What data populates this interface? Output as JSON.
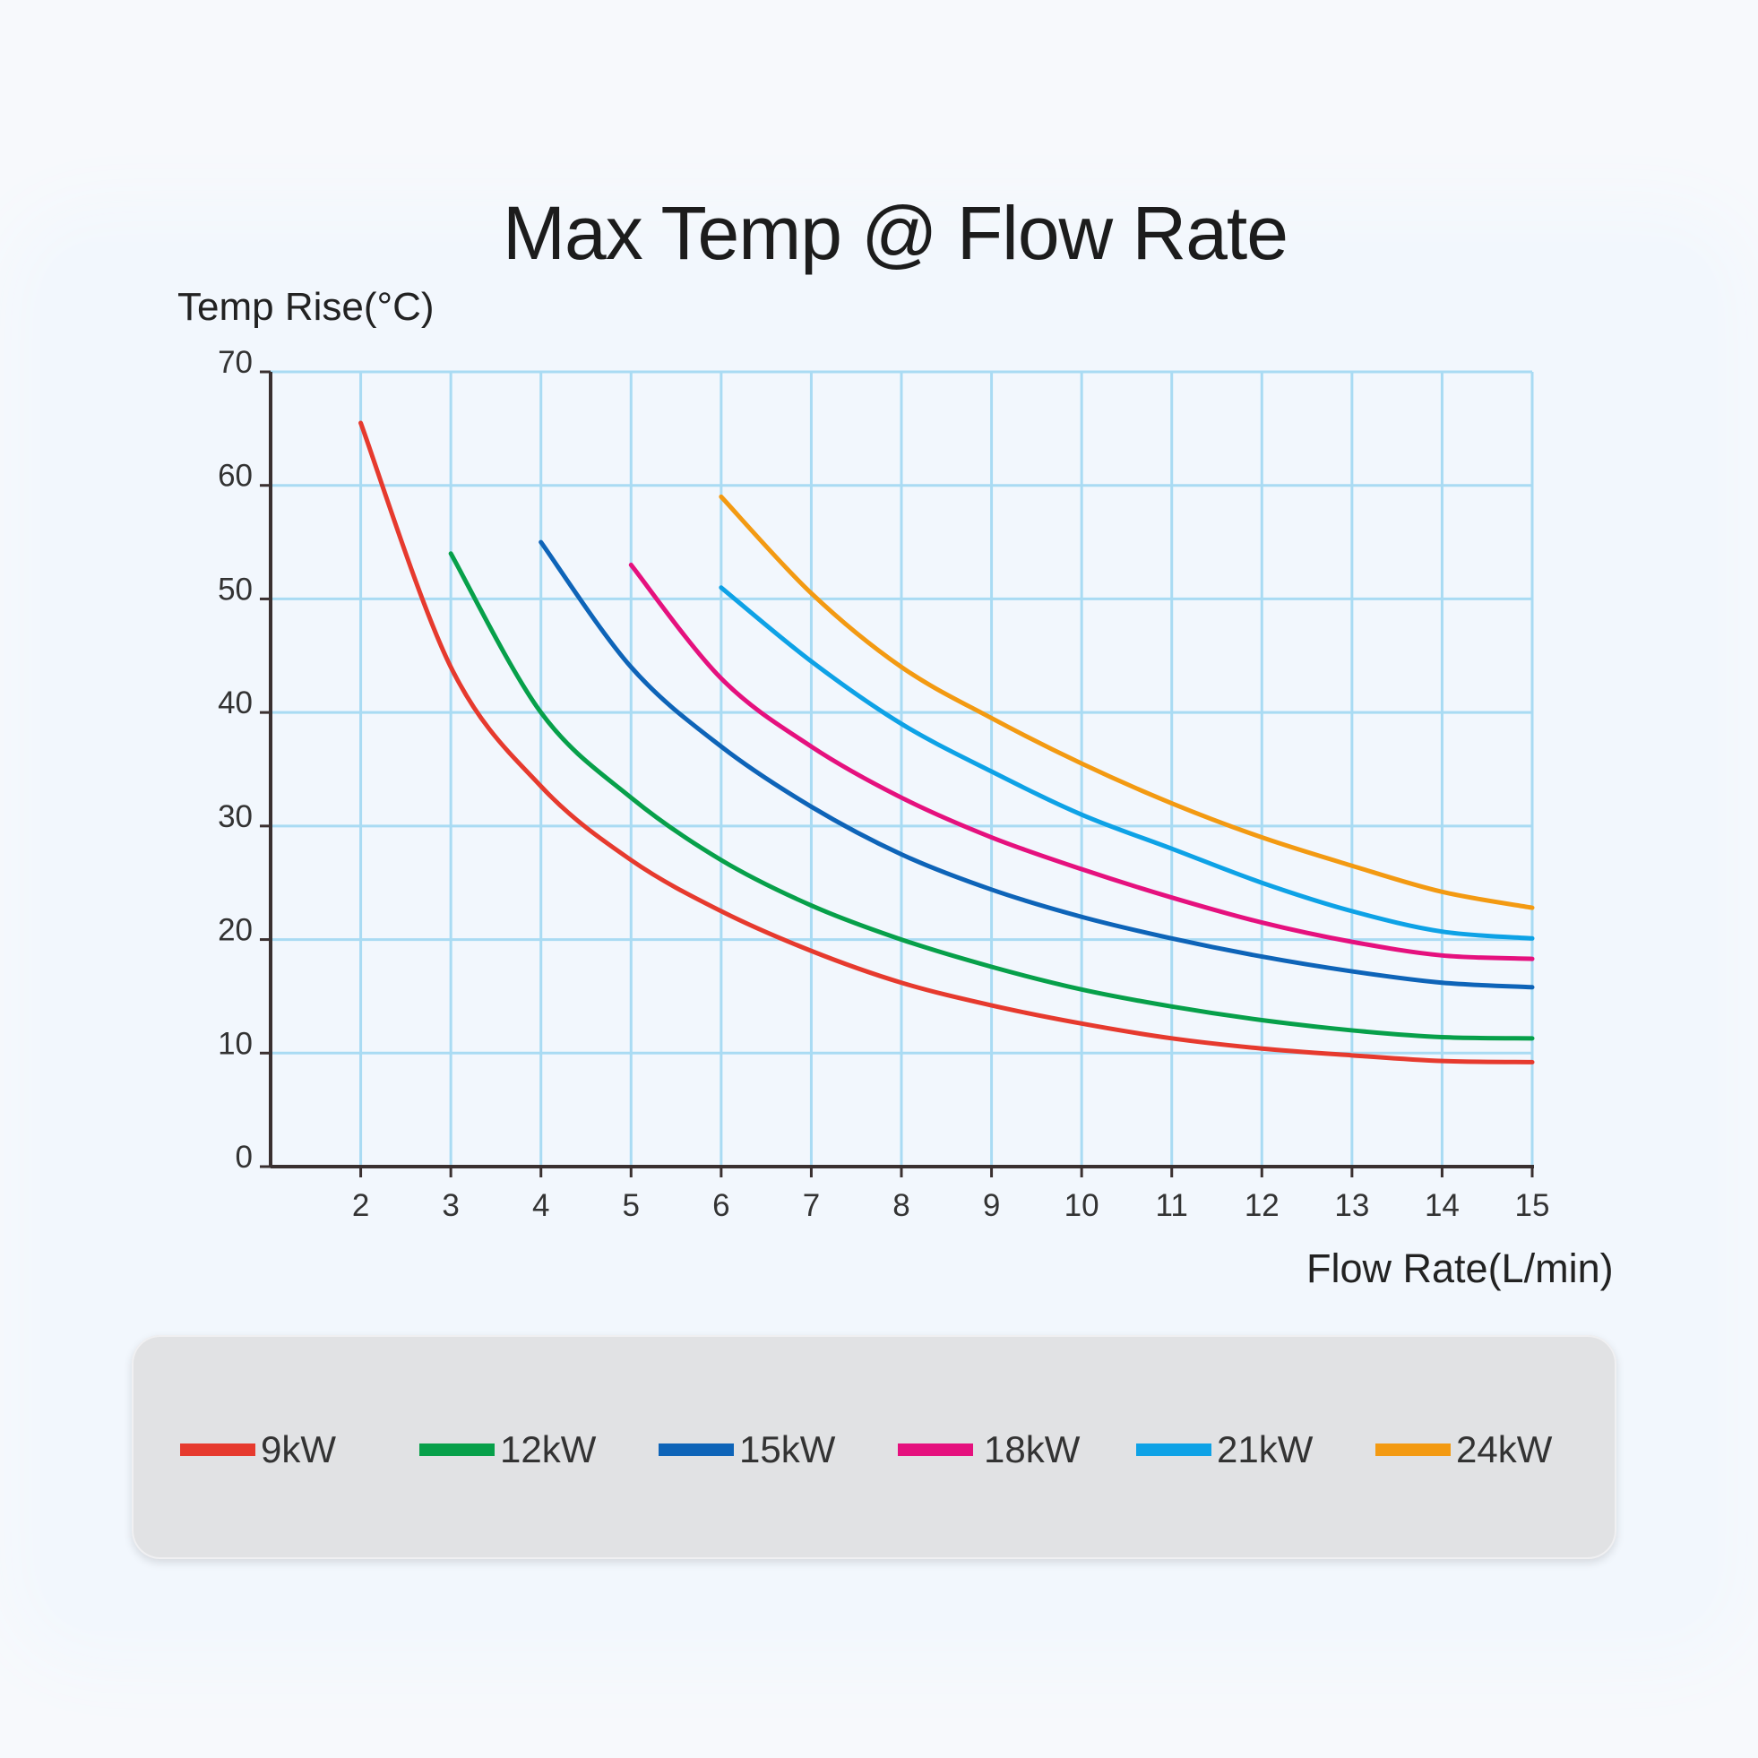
{
  "chart_data": {
    "type": "line",
    "title": "Max Temp @ Flow Rate",
    "ylabel": "Temp Rise(°C)",
    "xlabel": "Flow Rate(L/min)",
    "xlim": [
      1,
      15
    ],
    "ylim": [
      0,
      70
    ],
    "x_ticks": [
      2,
      3,
      4,
      5,
      6,
      7,
      8,
      9,
      10,
      11,
      12,
      13,
      14,
      15
    ],
    "y_ticks": [
      0,
      10,
      20,
      30,
      40,
      50,
      60,
      70
    ],
    "grid": true,
    "legend_position": "bottom",
    "series": [
      {
        "name": "9kW",
        "color": "#e63a2e",
        "x": [
          2,
          3,
          4,
          5,
          6,
          7,
          8,
          9,
          10,
          11,
          12,
          13,
          14,
          15
        ],
        "values": [
          65.5,
          44,
          33.5,
          27,
          22.5,
          19,
          16.2,
          14.2,
          12.6,
          11.3,
          10.4,
          9.8,
          9.3,
          9.2
        ]
      },
      {
        "name": "12kW",
        "color": "#07a04a",
        "x": [
          3,
          4,
          5,
          6,
          7,
          8,
          9,
          10,
          11,
          12,
          13,
          14,
          15
        ],
        "values": [
          54,
          40,
          32.5,
          27,
          23,
          20,
          17.6,
          15.6,
          14.1,
          12.9,
          12,
          11.4,
          11.3
        ]
      },
      {
        "name": "15kW",
        "color": "#0e64b8",
        "x": [
          4,
          5,
          6,
          7,
          8,
          9,
          10,
          11,
          12,
          13,
          14,
          15
        ],
        "values": [
          55,
          44,
          37,
          31.7,
          27.5,
          24.4,
          22,
          20.1,
          18.5,
          17.2,
          16.2,
          15.8
        ]
      },
      {
        "name": "18kW",
        "color": "#e5117e",
        "x": [
          5,
          6,
          7,
          8,
          9,
          10,
          11,
          12,
          13,
          14,
          15
        ],
        "values": [
          53,
          43,
          37,
          32.5,
          29,
          26.2,
          23.7,
          21.5,
          19.8,
          18.6,
          18.3
        ]
      },
      {
        "name": "21kW",
        "color": "#0ea2e6",
        "x": [
          6,
          7,
          8,
          9,
          10,
          11,
          12,
          13,
          14,
          15
        ],
        "values": [
          51,
          44.5,
          39,
          34.8,
          31,
          28,
          25,
          22.5,
          20.7,
          20.1
        ]
      },
      {
        "name": "24kW",
        "color": "#f39a12",
        "x": [
          6,
          7,
          8,
          9,
          10,
          11,
          12,
          13,
          14,
          15
        ],
        "values": [
          59,
          50.5,
          44,
          39.5,
          35.5,
          32,
          29,
          26.5,
          24.2,
          22.8
        ]
      }
    ]
  }
}
